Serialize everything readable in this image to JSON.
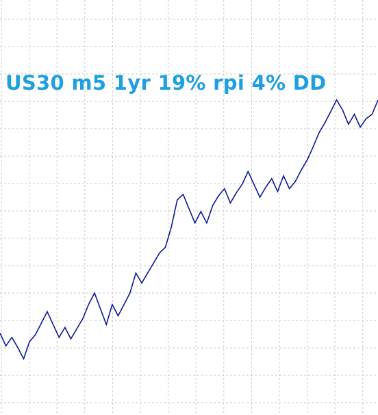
{
  "chart_data": {
    "type": "line",
    "title": "US30 m5 1yr 19% rpi 4% DD",
    "grid": true,
    "series": [
      {
        "values": [
          -0.2,
          -1.1,
          -0.5,
          -1.2,
          -2.0,
          -0.8,
          -0.3,
          0.5,
          1.3,
          0.4,
          -0.5,
          0.2,
          -0.6,
          0.1,
          0.8,
          1.8,
          2.6,
          1.5,
          0.4,
          1.8,
          1.0,
          1.8,
          2.6,
          4.0,
          3.3,
          4.0,
          4.7,
          5.4,
          5.8,
          7.2,
          9.1,
          9.5,
          8.5,
          7.5,
          8.3,
          7.5,
          8.7,
          9.4,
          9.9,
          8.9,
          9.6,
          10.2,
          11.1,
          10.2,
          9.3,
          10.0,
          10.6,
          9.7,
          10.8,
          9.9,
          10.4,
          11.2,
          11.9,
          12.8,
          13.8,
          14.5,
          15.3,
          16.1,
          15.4,
          14.4,
          15.1,
          14.2,
          14.8,
          15.1,
          16.1
        ]
      }
    ],
    "colors": {
      "line": "#0a1896",
      "title": "#1e9fe0",
      "grid": "#c9c9c9",
      "background": "#ffffff"
    }
  }
}
